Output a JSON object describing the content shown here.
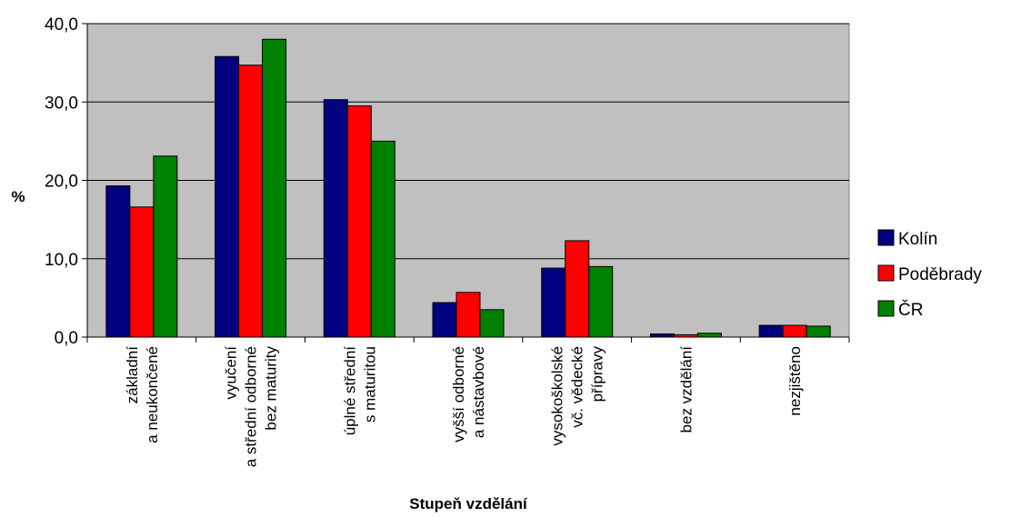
{
  "chart_data": {
    "type": "bar",
    "title": "",
    "ylabel": "%",
    "xlabel": "Stupeň vzdělání",
    "ylim": [
      0,
      40
    ],
    "yticks": [
      "0,0",
      "10,0",
      "20,0",
      "30,0",
      "40,0"
    ],
    "ytick_values": [
      0,
      10,
      20,
      30,
      40
    ],
    "grid": true,
    "legend_position": "right",
    "plot_background": "#c0c0c0",
    "categories": [
      [
        "základní",
        "a neukončené"
      ],
      [
        "vyučení",
        "a střední odborné",
        "bez maturity"
      ],
      [
        "úplné střední",
        "s maturitou"
      ],
      [
        "vyšší odborné",
        "a nástavbové"
      ],
      [
        "vysokoškolské",
        "vč. vědecké",
        "přípravy"
      ],
      [
        "bez vzdělání"
      ],
      [
        "nezjištěno"
      ]
    ],
    "series": [
      {
        "name": "Kolín",
        "color": "#000080",
        "values": [
          19.3,
          35.8,
          30.3,
          4.4,
          8.8,
          0.4,
          1.5
        ]
      },
      {
        "name": "Poděbrady",
        "color": "#ff0000",
        "values": [
          16.6,
          34.7,
          29.5,
          5.7,
          12.3,
          0.3,
          1.5
        ]
      },
      {
        "name": "ČR",
        "color": "#008000",
        "values": [
          23.1,
          38.0,
          25.0,
          3.5,
          9.0,
          0.5,
          1.4
        ]
      }
    ]
  }
}
